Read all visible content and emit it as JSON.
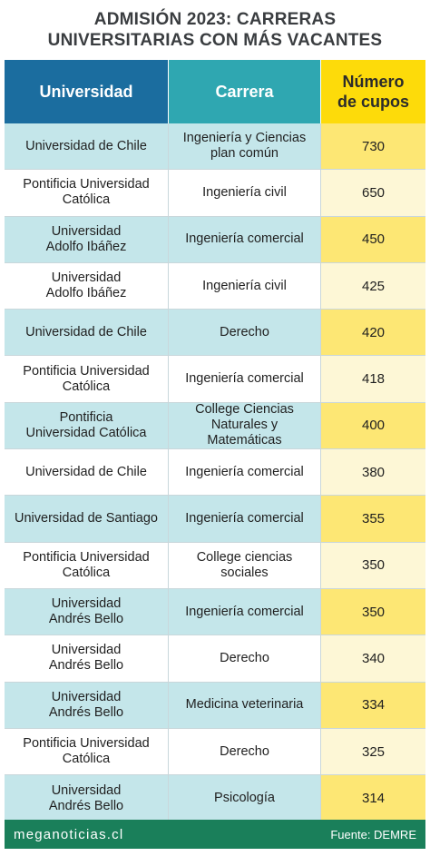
{
  "title_lines": [
    "ADMISIÓN 2023: CARRERAS",
    "UNIVERSITARIAS CON MÁS VACANTES"
  ],
  "chart_data": {
    "type": "table",
    "columns": [
      "Universidad",
      "Carrera",
      "Número\nde cupos"
    ],
    "rows": [
      {
        "universidad": "Universidad de Chile",
        "carrera": "Ingeniería y Ciencias\nplan común",
        "cupos": 730
      },
      {
        "universidad": "Pontificia Universidad\nCatólica",
        "carrera": "Ingeniería civil",
        "cupos": 650
      },
      {
        "universidad": "Universidad\nAdolfo Ibáñez",
        "carrera": "Ingeniería comercial",
        "cupos": 450
      },
      {
        "universidad": "Universidad\nAdolfo Ibáñez",
        "carrera": "Ingeniería civil",
        "cupos": 425
      },
      {
        "universidad": "Universidad de Chile",
        "carrera": "Derecho",
        "cupos": 420
      },
      {
        "universidad": "Pontificia Universidad\nCatólica",
        "carrera": "Ingeniería comercial",
        "cupos": 418
      },
      {
        "universidad": "Pontificia\nUniversidad Católica",
        "carrera": "College Ciencias\nNaturales y Matemáticas",
        "cupos": 400
      },
      {
        "universidad": "Universidad de Chile",
        "carrera": "Ingeniería comercial",
        "cupos": 380
      },
      {
        "universidad": "Universidad de Santiago",
        "carrera": "Ingeniería comercial",
        "cupos": 355
      },
      {
        "universidad": "Pontificia Universidad\nCatólica",
        "carrera": "College ciencias sociales",
        "cupos": 350
      },
      {
        "universidad": "Universidad\nAndrés Bello",
        "carrera": "Ingeniería comercial",
        "cupos": 350
      },
      {
        "universidad": "Universidad\nAndrés Bello",
        "carrera": "Derecho",
        "cupos": 340
      },
      {
        "universidad": "Universidad\nAndrés Bello",
        "carrera": "Medicina veterinaria",
        "cupos": 334
      },
      {
        "universidad": "Pontificia Universidad\nCatólica",
        "carrera": "Derecho",
        "cupos": 325
      },
      {
        "universidad": "Universidad\nAndrés Bello",
        "carrera": "Psicología",
        "cupos": 314
      }
    ]
  },
  "footer": {
    "brand": "meganoticias.cl",
    "source": "Fuente: DEMRE"
  },
  "colors": {
    "header_universidad": "#1b6d9f",
    "header_carrera": "#2fa7b1",
    "header_cupos": "#fddb0a",
    "row_tint": "#c4e6ea",
    "cupos_tint": "#fde774",
    "footer": "#1a7f5a"
  }
}
